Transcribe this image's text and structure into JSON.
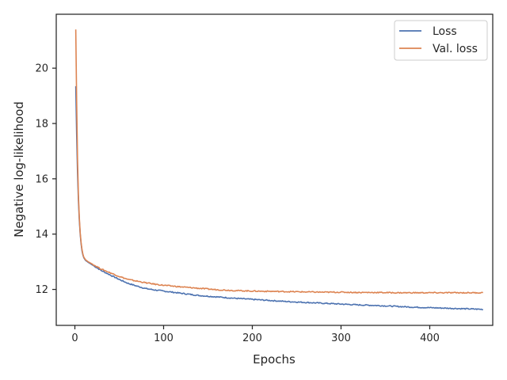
{
  "chart_data": {
    "type": "line",
    "title": "",
    "xlabel": "Epochs",
    "ylabel": "Negative log-likelihood",
    "xlim": [
      -21,
      471
    ],
    "ylim": [
      10.7,
      21.95
    ],
    "x_ticks": [
      0,
      100,
      200,
      300,
      400
    ],
    "y_ticks": [
      12,
      14,
      16,
      18,
      20
    ],
    "grid": false,
    "legend_position": "top-right",
    "series": [
      {
        "name": "Loss",
        "color": "#4c72b0",
        "x": [
          1,
          2,
          3,
          4,
          5,
          6,
          7,
          8,
          9,
          10,
          12,
          15,
          20,
          25,
          30,
          40,
          50,
          60,
          70,
          80,
          90,
          100,
          120,
          140,
          160,
          180,
          200,
          220,
          240,
          260,
          280,
          300,
          320,
          340,
          360,
          380,
          400,
          420,
          440,
          460
        ],
        "y": [
          19.35,
          17.6,
          16.2,
          15.2,
          14.5,
          14.0,
          13.65,
          13.4,
          13.25,
          13.15,
          13.05,
          12.98,
          12.88,
          12.78,
          12.68,
          12.52,
          12.36,
          12.22,
          12.12,
          12.03,
          11.98,
          11.94,
          11.86,
          11.78,
          11.73,
          11.68,
          11.64,
          11.6,
          11.56,
          11.53,
          11.5,
          11.47,
          11.44,
          11.42,
          11.39,
          11.36,
          11.34,
          11.32,
          11.3,
          11.28
        ]
      },
      {
        "name": "Val. loss",
        "color": "#dd8452",
        "x": [
          1,
          2,
          3,
          4,
          5,
          6,
          7,
          8,
          9,
          10,
          12,
          15,
          20,
          25,
          30,
          40,
          50,
          60,
          70,
          80,
          90,
          100,
          120,
          140,
          160,
          180,
          200,
          220,
          240,
          260,
          280,
          300,
          320,
          340,
          360,
          380,
          400,
          420,
          440,
          460
        ],
        "y": [
          21.4,
          18.8,
          16.7,
          15.4,
          14.6,
          14.05,
          13.7,
          13.45,
          13.28,
          13.17,
          13.07,
          13.0,
          12.91,
          12.82,
          12.73,
          12.6,
          12.47,
          12.36,
          12.3,
          12.24,
          12.19,
          12.15,
          12.09,
          12.04,
          11.99,
          11.96,
          11.94,
          11.93,
          11.92,
          11.91,
          11.9,
          11.9,
          11.89,
          11.89,
          11.88,
          11.88,
          11.88,
          11.88,
          11.88,
          11.88
        ]
      }
    ]
  }
}
